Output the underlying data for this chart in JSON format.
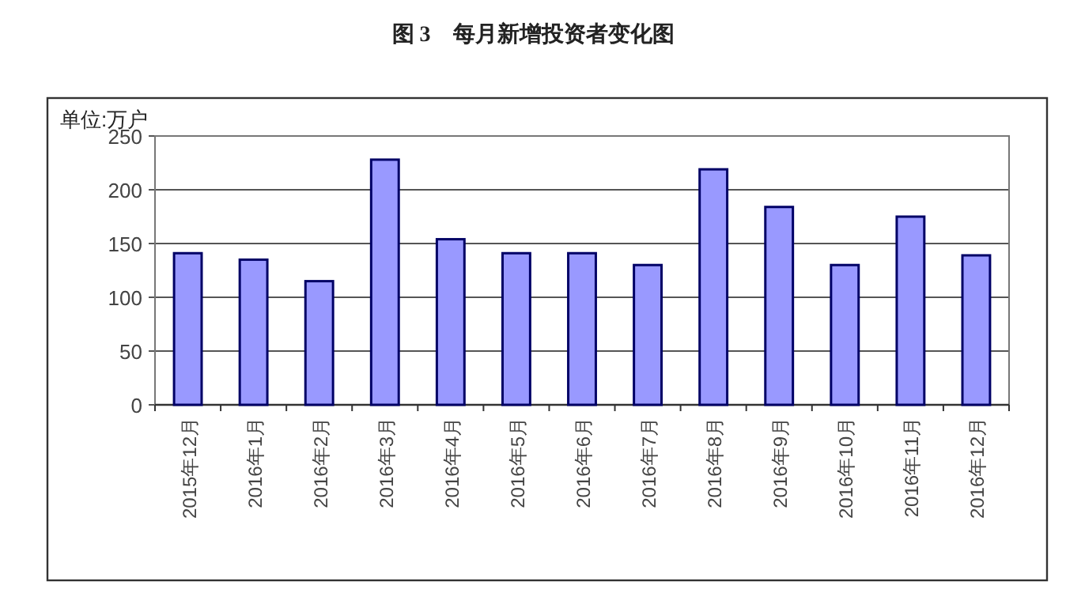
{
  "chart_data": {
    "type": "bar",
    "title": "图 3　每月新增投资者变化图",
    "ylabel": "单位:万户",
    "categories": [
      "2015年12月",
      "2016年1月",
      "2016年2月",
      "2016年3月",
      "2016年4月",
      "2016年5月",
      "2016年6月",
      "2016年7月",
      "2016年8月",
      "2016年9月",
      "2016年10月",
      "2016年11月",
      "2016年12月"
    ],
    "values": [
      141,
      135,
      115,
      228,
      154,
      141,
      141,
      130,
      219,
      184,
      130,
      175,
      139
    ],
    "color": "#9999ff",
    "ylim": [
      0,
      250
    ],
    "yticks": [
      0,
      50,
      100,
      150,
      200,
      250
    ],
    "grid": "y"
  }
}
